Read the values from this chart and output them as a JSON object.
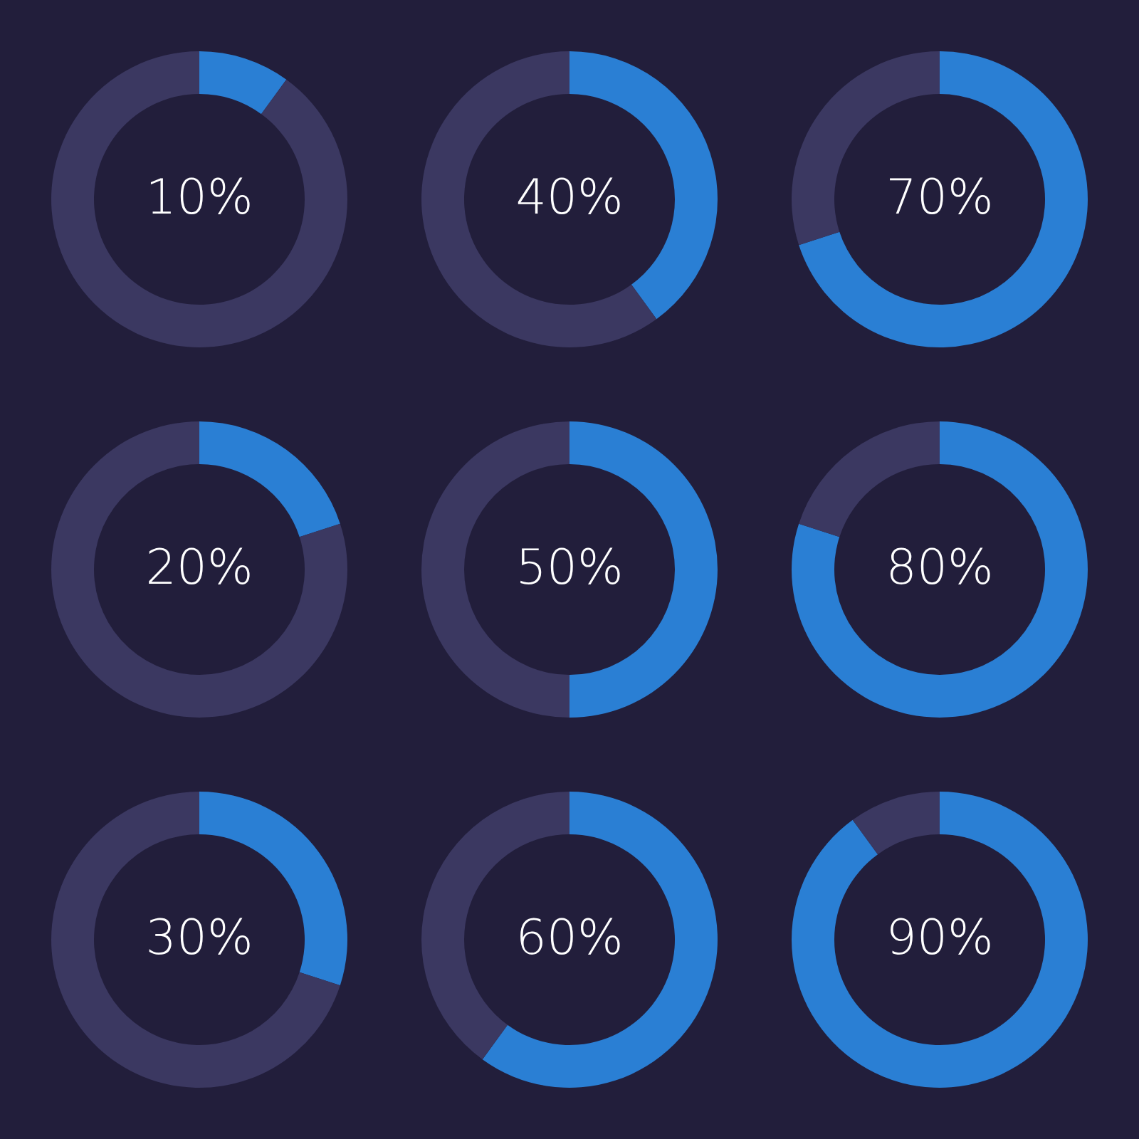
{
  "chart_data": [
    {
      "type": "donut",
      "categories": [
        null,
        null
      ],
      "values": [
        10,
        90
      ],
      "colors": [
        "#2a7fd4",
        "#3b3861"
      ],
      "value_labels": [
        "10%",
        null
      ]
    },
    {
      "type": "donut",
      "categories": [
        null,
        null
      ],
      "values": [
        40,
        60
      ],
      "colors": [
        "#2a7fd4",
        "#3b3861"
      ],
      "value_labels": [
        "40%",
        null
      ]
    },
    {
      "type": "donut",
      "categories": [
        null,
        null
      ],
      "values": [
        70,
        30
      ],
      "colors": [
        "#2a7fd4",
        "#3b3861"
      ],
      "value_labels": [
        "70%",
        null
      ]
    },
    {
      "type": "donut",
      "categories": [
        null,
        null
      ],
      "values": [
        20,
        80
      ],
      "colors": [
        "#2a7fd4",
        "#3b3861"
      ],
      "value_labels": [
        "20%",
        null
      ]
    },
    {
      "type": "donut",
      "categories": [
        null,
        null
      ],
      "values": [
        50,
        50
      ],
      "colors": [
        "#2a7fd4",
        "#3b3861"
      ],
      "value_labels": [
        "50%",
        null
      ]
    },
    {
      "type": "donut",
      "categories": [
        null,
        null
      ],
      "values": [
        80,
        20
      ],
      "colors": [
        "#2a7fd4",
        "#3b3861"
      ],
      "value_labels": [
        "80%",
        null
      ]
    },
    {
      "type": "donut",
      "categories": [
        null,
        null
      ],
      "values": [
        30,
        70
      ],
      "colors": [
        "#2a7fd4",
        "#3b3861"
      ],
      "value_labels": [
        "30%",
        null
      ]
    },
    {
      "type": "donut",
      "categories": [
        null,
        null
      ],
      "values": [
        60,
        40
      ],
      "colors": [
        "#2a7fd4",
        "#3b3861"
      ],
      "value_labels": [
        "60%",
        null
      ]
    },
    {
      "type": "donut",
      "categories": [
        null,
        null
      ],
      "values": [
        90,
        10
      ],
      "colors": [
        "#2a7fd4",
        "#3b3861"
      ],
      "value_labels": [
        "90%",
        null
      ]
    }
  ]
}
